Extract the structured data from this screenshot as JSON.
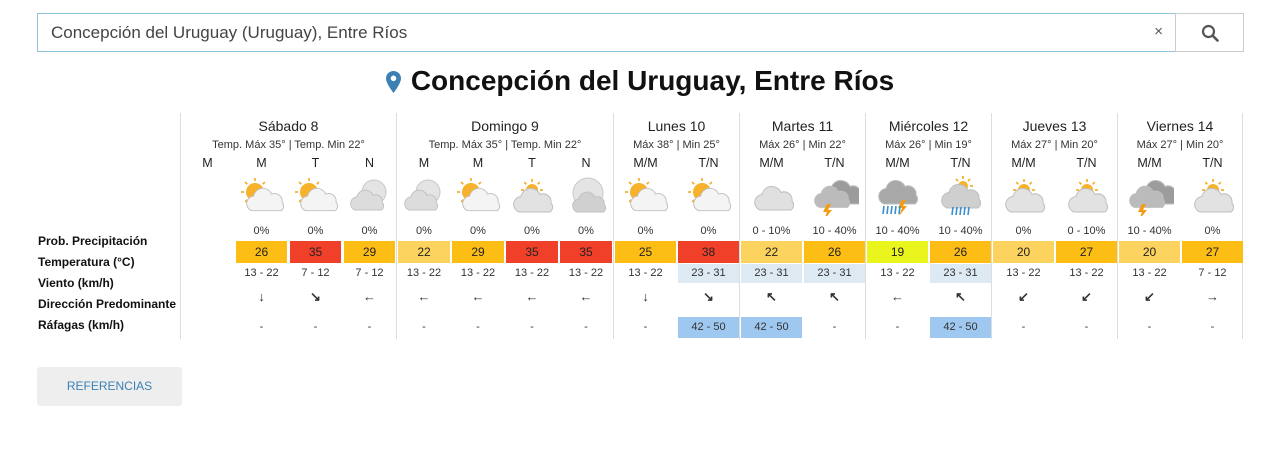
{
  "search": {
    "value": "Concepción del Uruguay (Uruguay), Entre Ríos",
    "clear_label": "×"
  },
  "title": "Concepción del Uruguay, Entre Ríos",
  "row_labels": [
    "Prob. Precipitación",
    "Temperatura (°C)",
    "Viento (km/h)",
    "Dirección Predominante",
    "Ráfagas (km/h)"
  ],
  "days": [
    {
      "name": "Sábado 8",
      "temps": "Temp. Máx 35° | Temp. Min 22°",
      "slots": [
        {
          "label": "M",
          "icon": "none",
          "prec": "",
          "temp": "",
          "temp_color": "",
          "wind": "",
          "wind_hl": false,
          "dir": "",
          "gust": "",
          "gust_hl": false
        },
        {
          "label": "M",
          "icon": "sun-cloud-icon",
          "prec": "0%",
          "temp": "26",
          "temp_color": "#fcbd15",
          "wind": "13 - 22",
          "wind_hl": false,
          "dir": "↓",
          "gust": "-",
          "gust_hl": false
        },
        {
          "label": "T",
          "icon": "sun-cloud-icon",
          "prec": "0%",
          "temp": "35",
          "temp_color": "#f0402a",
          "wind": "7 - 12",
          "wind_hl": false,
          "dir": "↘",
          "gust": "-",
          "gust_hl": false
        },
        {
          "label": "N",
          "icon": "moon-cloud-icon",
          "prec": "0%",
          "temp": "29",
          "temp_color": "#fcbd15",
          "wind": "7 - 12",
          "wind_hl": false,
          "dir": "←",
          "gust": "-",
          "gust_hl": false
        }
      ]
    },
    {
      "name": "Domingo 9",
      "temps": "Temp. Máx 35° | Temp. Min 22°",
      "slots": [
        {
          "label": "M",
          "icon": "moon-cloud-icon",
          "prec": "0%",
          "temp": "22",
          "temp_color": "#fdd35f",
          "wind": "13 - 22",
          "wind_hl": false,
          "dir": "←",
          "gust": "-",
          "gust_hl": false
        },
        {
          "label": "M",
          "icon": "sun-cloud-icon",
          "prec": "0%",
          "temp": "29",
          "temp_color": "#fcbd15",
          "wind": "13 - 22",
          "wind_hl": false,
          "dir": "←",
          "gust": "-",
          "gust_hl": false
        },
        {
          "label": "T",
          "icon": "sun-cloudy-icon",
          "prec": "0%",
          "temp": "35",
          "temp_color": "#f0402a",
          "wind": "13 - 22",
          "wind_hl": false,
          "dir": "←",
          "gust": "-",
          "gust_hl": false
        },
        {
          "label": "N",
          "icon": "moon-cloudy-icon",
          "prec": "0%",
          "temp": "35",
          "temp_color": "#f0402a",
          "wind": "13 - 22",
          "wind_hl": false,
          "dir": "←",
          "gust": "-",
          "gust_hl": false
        }
      ]
    },
    {
      "name": "Lunes 10",
      "temps": "Máx 38° | Min 25°",
      "slots": [
        {
          "label": "M/M",
          "icon": "sun-cloud-icon",
          "prec": "0%",
          "temp": "25",
          "temp_color": "#fcbd15",
          "wind": "13 - 22",
          "wind_hl": false,
          "dir": "↓",
          "gust": "-",
          "gust_hl": false
        },
        {
          "label": "T/N",
          "icon": "sun-cloud-icon",
          "prec": "0%",
          "temp": "38",
          "temp_color": "#f0402a",
          "wind": "23 - 31",
          "wind_hl": true,
          "dir": "↘",
          "gust": "42 - 50",
          "gust_hl": true
        }
      ]
    },
    {
      "name": "Martes 11",
      "temps": "Máx 26° | Min 22°",
      "slots": [
        {
          "label": "M/M",
          "icon": "cloudy-icon",
          "prec": "0 - 10%",
          "temp": "22",
          "temp_color": "#fdd35f",
          "wind": "23 - 31",
          "wind_hl": true,
          "dir": "↖",
          "gust": "42 - 50",
          "gust_hl": true
        },
        {
          "label": "T/N",
          "icon": "storm-icon",
          "prec": "10 - 40%",
          "temp": "26",
          "temp_color": "#fcbd15",
          "wind": "23 - 31",
          "wind_hl": true,
          "dir": "↖",
          "gust": "-",
          "gust_hl": false
        }
      ]
    },
    {
      "name": "Miércoles 12",
      "temps": "Máx 26° | Min 19°",
      "slots": [
        {
          "label": "M/M",
          "icon": "rain-storm-icon",
          "prec": "10 - 40%",
          "temp": "19",
          "temp_color": "#e9f51d",
          "wind": "13 - 22",
          "wind_hl": false,
          "dir": "←",
          "gust": "-",
          "gust_hl": false
        },
        {
          "label": "T/N",
          "icon": "rain-icon",
          "prec": "10 - 40%",
          "temp": "26",
          "temp_color": "#fcbd15",
          "wind": "23 - 31",
          "wind_hl": true,
          "dir": "↖",
          "gust": "42 - 50",
          "gust_hl": true
        }
      ]
    },
    {
      "name": "Jueves 13",
      "temps": "Máx 27° | Min 20°",
      "slots": [
        {
          "label": "M/M",
          "icon": "sun-cloudy-icon",
          "prec": "0%",
          "temp": "20",
          "temp_color": "#fdd35f",
          "wind": "13 - 22",
          "wind_hl": false,
          "dir": "↙",
          "gust": "-",
          "gust_hl": false
        },
        {
          "label": "T/N",
          "icon": "sun-cloudy-icon",
          "prec": "0 - 10%",
          "temp": "27",
          "temp_color": "#fcbd15",
          "wind": "13 - 22",
          "wind_hl": false,
          "dir": "↙",
          "gust": "-",
          "gust_hl": false
        }
      ]
    },
    {
      "name": "Viernes 14",
      "temps": "Máx 27° | Min 20°",
      "slots": [
        {
          "label": "M/M",
          "icon": "storm-icon",
          "prec": "10 - 40%",
          "temp": "20",
          "temp_color": "#fdd35f",
          "wind": "13 - 22",
          "wind_hl": false,
          "dir": "↙",
          "gust": "-",
          "gust_hl": false
        },
        {
          "label": "T/N",
          "icon": "sun-cloudy-icon",
          "prec": "0%",
          "temp": "27",
          "temp_color": "#fcbd15",
          "wind": "7 - 12",
          "wind_hl": false,
          "dir": "→",
          "gust": "-",
          "gust_hl": false
        }
      ]
    }
  ],
  "references_button": "REFERENCIAS",
  "colors": {
    "accent": "#3b7fb3",
    "hot": "#f0402a",
    "warm": "#fcbd15",
    "mild": "#fdd35f",
    "cool": "#e9f51d",
    "gust_highlight": "#9ec8f0",
    "wind_highlight": "#dde9f3"
  }
}
